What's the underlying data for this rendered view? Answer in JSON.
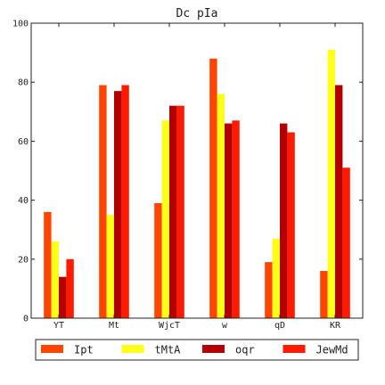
{
  "chart_data": {
    "type": "bar",
    "title": "Dc pIa",
    "xlabel": "",
    "ylabel": "",
    "categories": [
      "YT",
      "Mt",
      "WjcT",
      "w",
      "qD",
      "KR"
    ],
    "ylim": [
      0,
      100
    ],
    "yticks": [
      0,
      20,
      40,
      60,
      80,
      100
    ],
    "grid": false,
    "legend_position": "bottom",
    "series": [
      {
        "name": "Ipt",
        "color": "#ff4500",
        "values": [
          36,
          79,
          39,
          88,
          19,
          16
        ]
      },
      {
        "name": "tMtA",
        "color": "#ffff1a",
        "values": [
          26,
          35,
          67,
          76,
          27,
          91
        ]
      },
      {
        "name": "oqr",
        "color": "#b30000",
        "values": [
          14,
          77,
          72,
          66,
          66,
          79
        ]
      },
      {
        "name": "JewMd",
        "color": "#ff1a00",
        "values": [
          20,
          79,
          72,
          67,
          63,
          51
        ]
      }
    ]
  }
}
